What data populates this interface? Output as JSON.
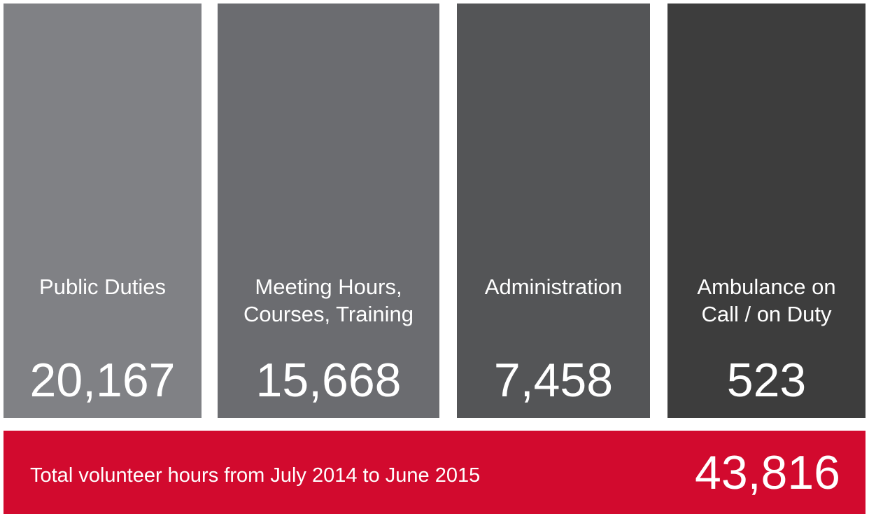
{
  "panels": [
    {
      "label": [
        "Public Duties"
      ],
      "value": "20,167",
      "color": "#808185"
    },
    {
      "label": [
        "Meeting Hours,",
        "Courses, Training"
      ],
      "value": "15,668",
      "color": "#6b6c70"
    },
    {
      "label": [
        "Administration"
      ],
      "value": "7,458",
      "color": "#545557"
    },
    {
      "label": [
        "Ambulance on",
        "Call / on Duty"
      ],
      "value": "523",
      "color": "#3d3d3d"
    }
  ],
  "total": {
    "label": "Total volunteer hours from July 2014 to June 2015",
    "value": "43,816",
    "color": "#d20a2e"
  }
}
